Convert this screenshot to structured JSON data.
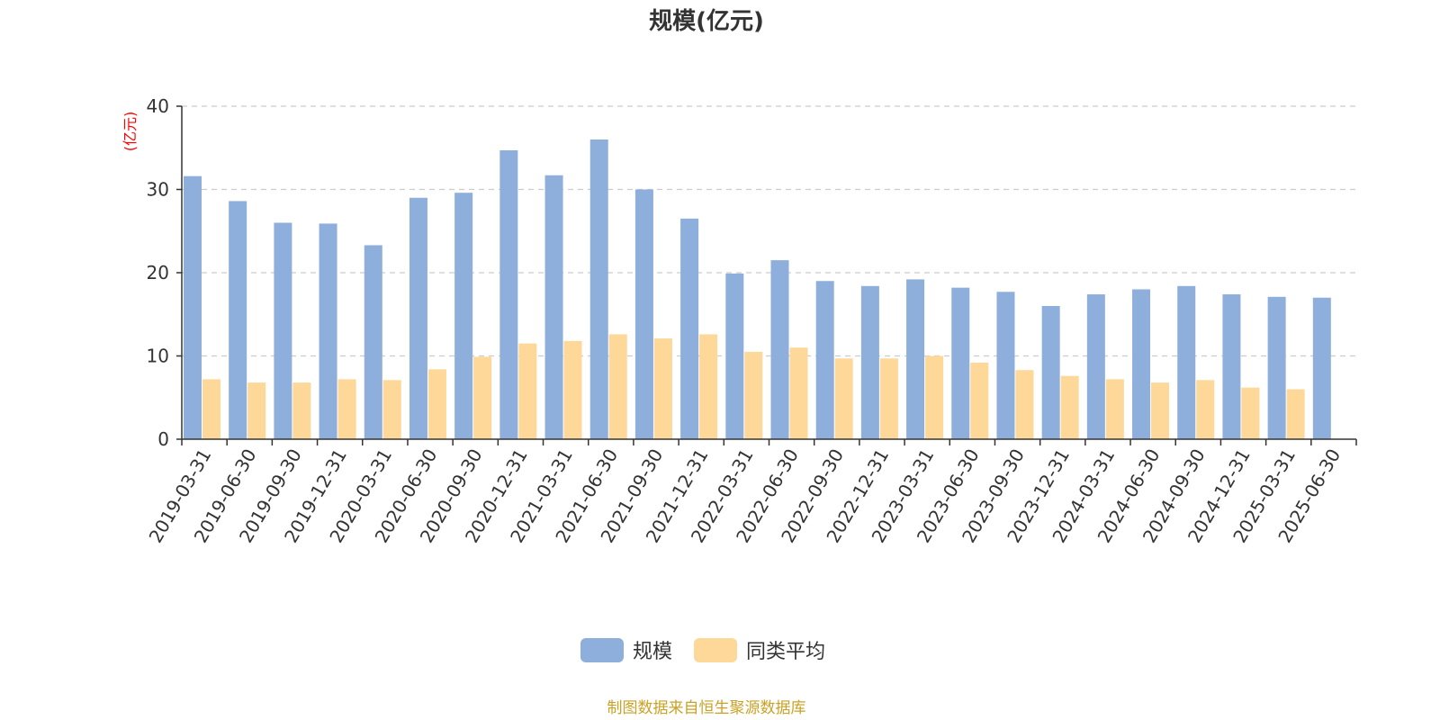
{
  "chart_data": {
    "type": "bar",
    "title": "规模(亿元)",
    "y_unit_label": "(亿元)",
    "ylim": [
      0,
      40
    ],
    "y_ticks": [
      "0",
      "10",
      "20",
      "30",
      "40"
    ],
    "grid": true,
    "legend_position": "bottom-center",
    "categories": [
      "2019-03-31",
      "2019-06-30",
      "2019-09-30",
      "2019-12-31",
      "2020-03-31",
      "2020-06-30",
      "2020-09-30",
      "2020-12-31",
      "2021-03-31",
      "2021-06-30",
      "2021-09-30",
      "2021-12-31",
      "2022-03-31",
      "2022-06-30",
      "2022-09-30",
      "2022-12-31",
      "2023-03-31",
      "2023-06-30",
      "2023-09-30",
      "2023-12-31",
      "2024-03-31",
      "2024-06-30",
      "2024-09-30",
      "2024-12-31",
      "2025-03-31",
      "2025-06-30"
    ],
    "series": [
      {
        "name": "规模",
        "color": "#8eaedb",
        "values": [
          31.6,
          28.6,
          26.0,
          25.9,
          23.3,
          29.0,
          29.6,
          34.7,
          31.7,
          36.0,
          30.0,
          26.5,
          19.9,
          21.5,
          19.0,
          18.4,
          19.2,
          18.2,
          17.7,
          16.0,
          17.4,
          18.0,
          18.4,
          17.4,
          17.1,
          17.0
        ]
      },
      {
        "name": "同类平均",
        "color": "#fdd899",
        "values": [
          7.2,
          6.8,
          6.8,
          7.2,
          7.1,
          8.4,
          9.9,
          11.5,
          11.8,
          12.6,
          12.1,
          12.6,
          10.5,
          11.0,
          9.7,
          9.7,
          10.0,
          9.2,
          8.3,
          7.6,
          7.2,
          6.8,
          7.1,
          6.2,
          6.0,
          null
        ]
      }
    ]
  },
  "footer": {
    "source": "制图数据来自恒生聚源数据库"
  }
}
